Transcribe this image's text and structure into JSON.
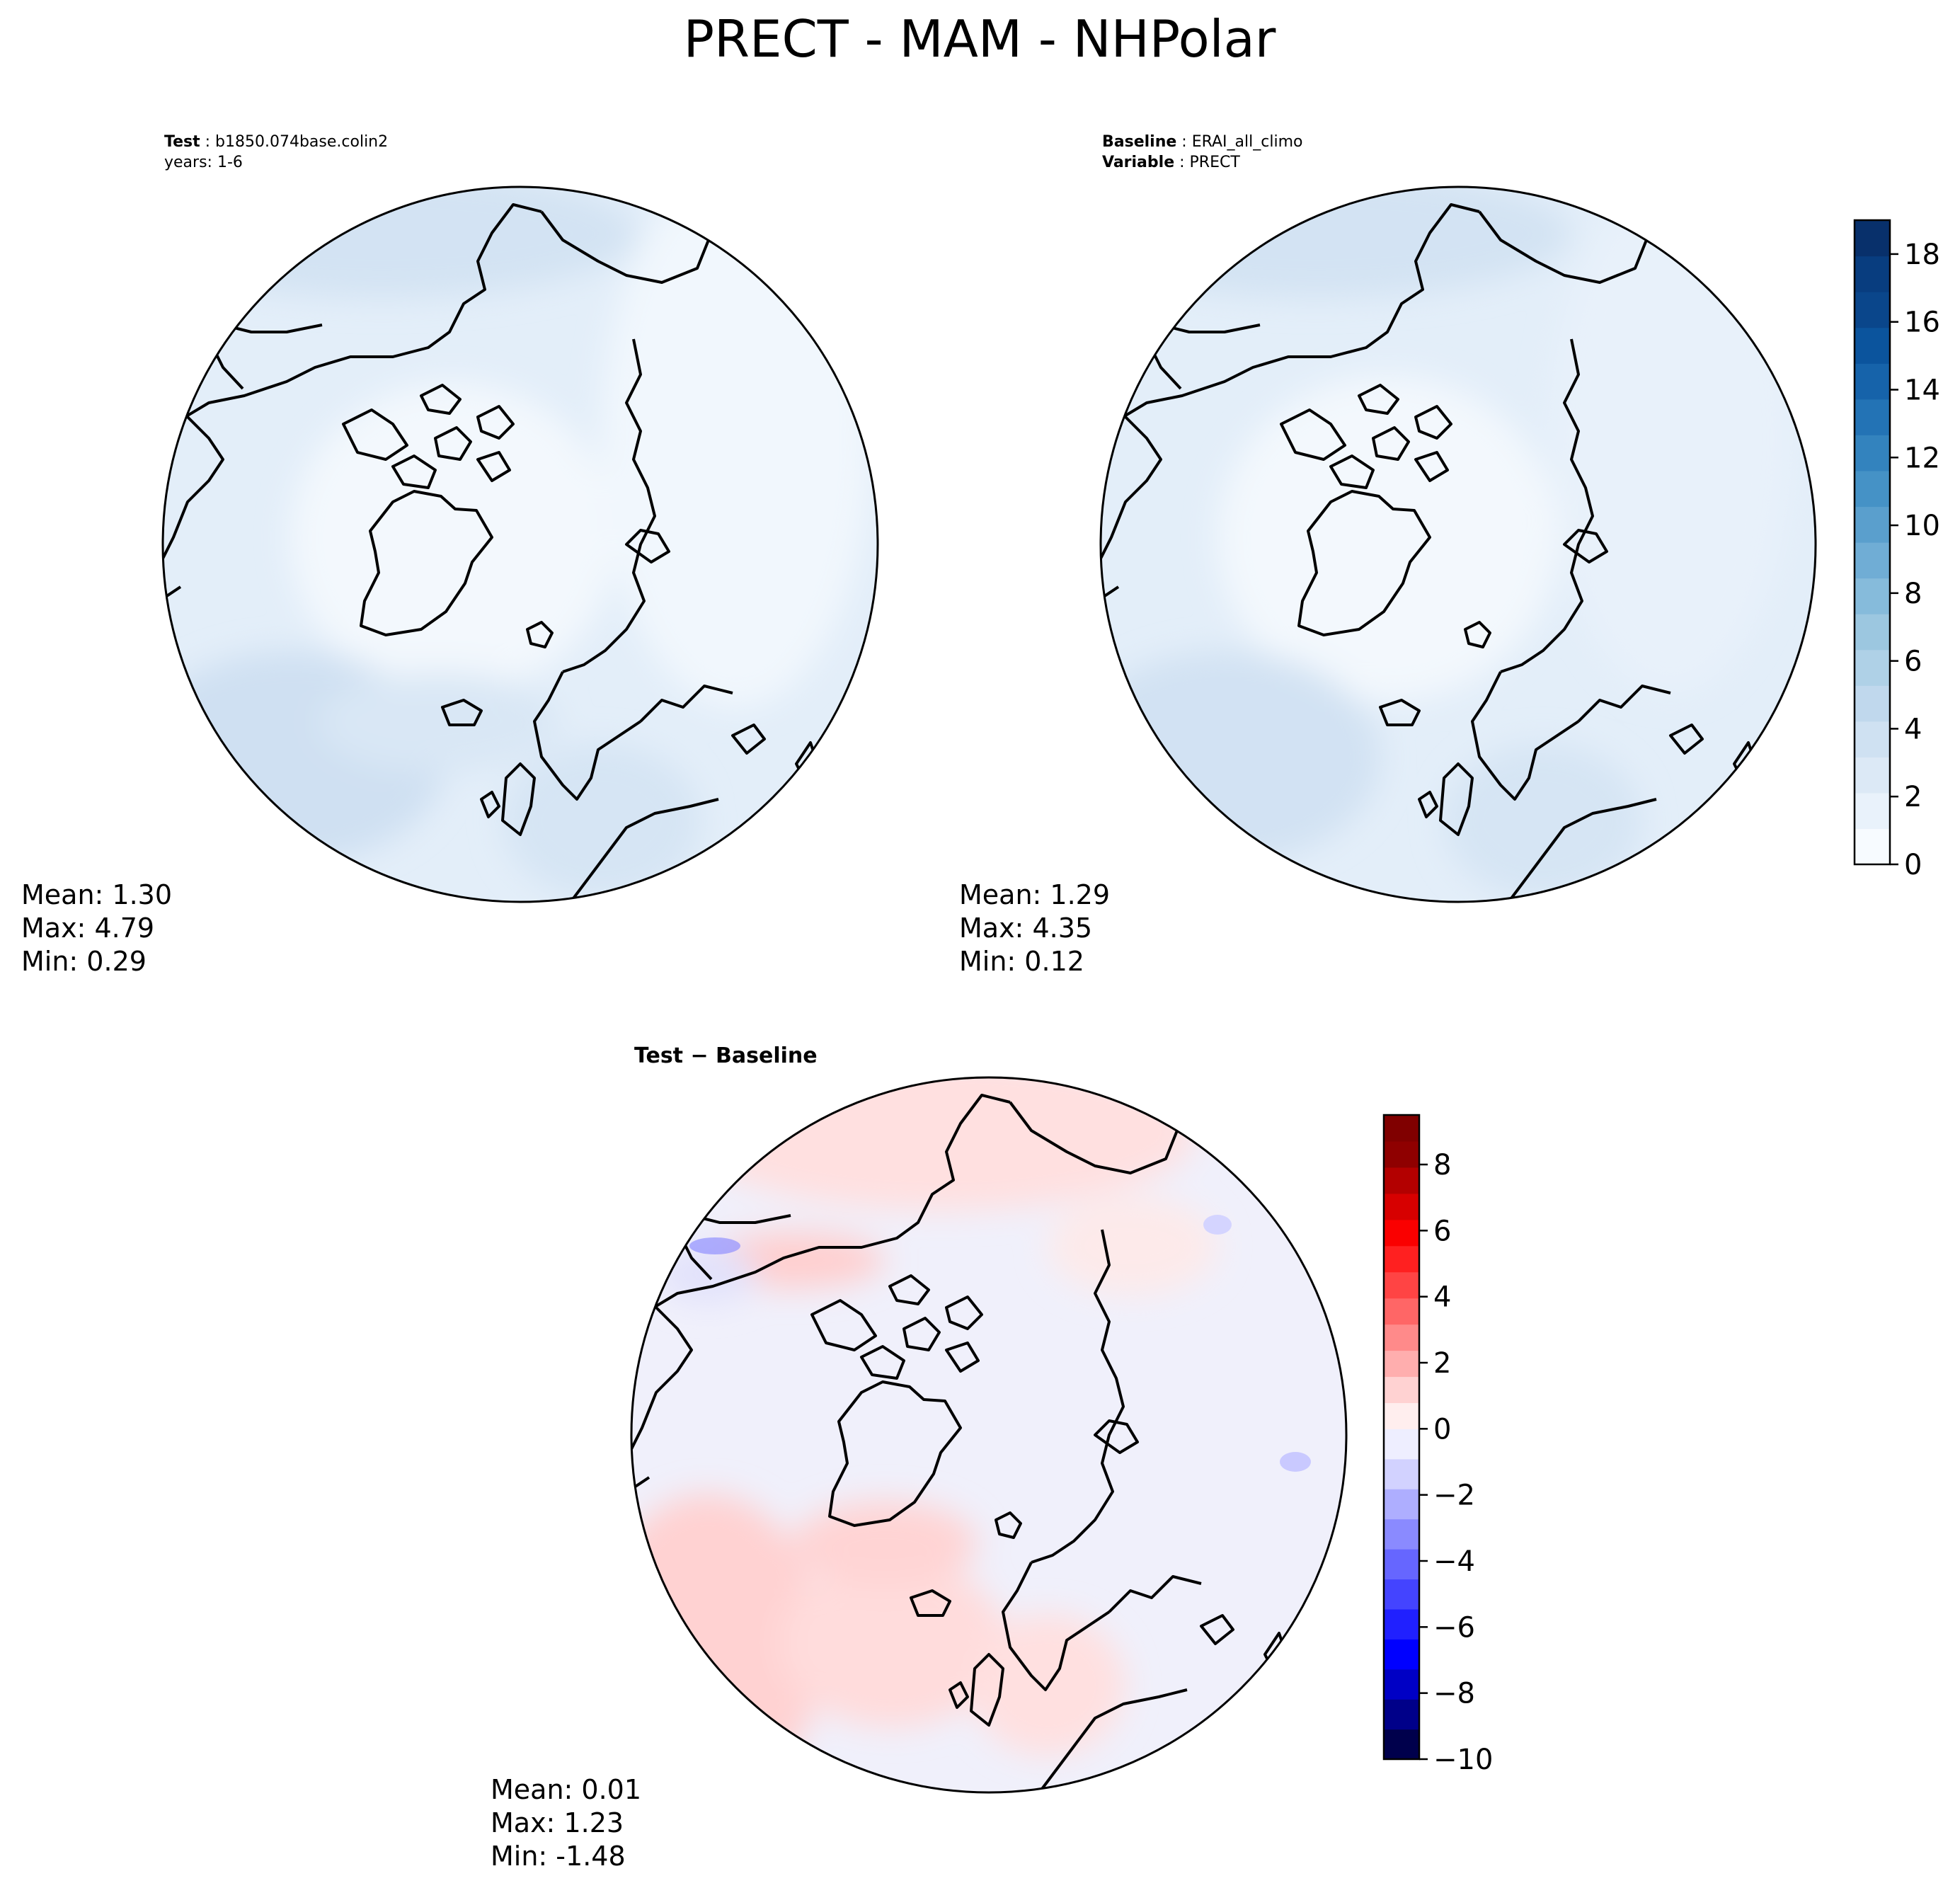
{
  "figure": {
    "title": "PRECT - MAM - NHPolar"
  },
  "panels": {
    "test": {
      "label_key": "Test",
      "label_value": "b1850.074base.colin2",
      "years": "years: 1-6",
      "stats": {
        "mean": "Mean:  1.30",
        "max": "Max:  4.79",
        "min": "Min:  0.29"
      }
    },
    "baseline": {
      "label_key": "Baseline",
      "label_value": "ERAI_all_climo",
      "variable_key": "Variable",
      "variable_value": "PRECT",
      "stats": {
        "mean": "Mean:  1.29",
        "max": "Max:  4.35",
        "min": "Min:  0.12"
      }
    },
    "diff": {
      "title": "Test − Baseline",
      "stats": {
        "mean": "Mean:  0.01",
        "max": "Max:  1.23",
        "min": "Min: -1.48"
      }
    }
  },
  "colors": {
    "blues": [
      "#f7fbff",
      "#e9f2fb",
      "#dce9f6",
      "#cfe1f2",
      "#c0d8ed",
      "#afd1e7",
      "#9cc7e0",
      "#86bbdb",
      "#70add5",
      "#5a9fcd",
      "#4592c6",
      "#3383be",
      "#2373b5",
      "#1663aa",
      "#0b549d",
      "#0a468b",
      "#083d7f",
      "#08306b"
    ],
    "diverging_neg": [
      "#00004c",
      "#000089",
      "#0000c5",
      "#0000ff",
      "#2020ff",
      "#4444ff",
      "#6666ff",
      "#8a8aff",
      "#aeaeff",
      "#d2d2ff",
      "#eeeeff"
    ],
    "diverging_pos": [
      "#ffeeee",
      "#ffd2d2",
      "#ffaeae",
      "#ff8a8a",
      "#ff6666",
      "#ff4444",
      "#ff2020",
      "#fa0000",
      "#d70000",
      "#b30000",
      "#8f0000",
      "#800000"
    ],
    "map_base_blue": "#e3eef9",
    "map_base_diff": "#f0f0fb"
  },
  "chart_data": [
    {
      "type": "heatmap",
      "title": "Test",
      "projection": "North Polar Stereographic",
      "variable": "PRECT",
      "season": "MAM",
      "mean": 1.3,
      "max": 4.79,
      "min": 0.29,
      "colorbar": "shared"
    },
    {
      "type": "heatmap",
      "title": "Baseline",
      "projection": "North Polar Stereographic",
      "variable": "PRECT",
      "season": "MAM",
      "mean": 1.29,
      "max": 4.35,
      "min": 0.12,
      "colorbar": {
        "range": [
          0,
          19
        ],
        "ticks": [
          0,
          2,
          4,
          6,
          8,
          10,
          12,
          14,
          16,
          18
        ],
        "levels": 18,
        "cmap": "Blues"
      }
    },
    {
      "type": "heatmap",
      "title": "Test - Baseline",
      "projection": "North Polar Stereographic",
      "variable": "PRECT",
      "season": "MAM",
      "mean": 0.01,
      "max": 1.23,
      "min": -1.48,
      "colorbar": {
        "range": [
          -10,
          9.5
        ],
        "ticks": [
          -10,
          -8,
          -6,
          -4,
          -2,
          0,
          2,
          4,
          6,
          8
        ],
        "cmap": "seismic"
      }
    }
  ]
}
